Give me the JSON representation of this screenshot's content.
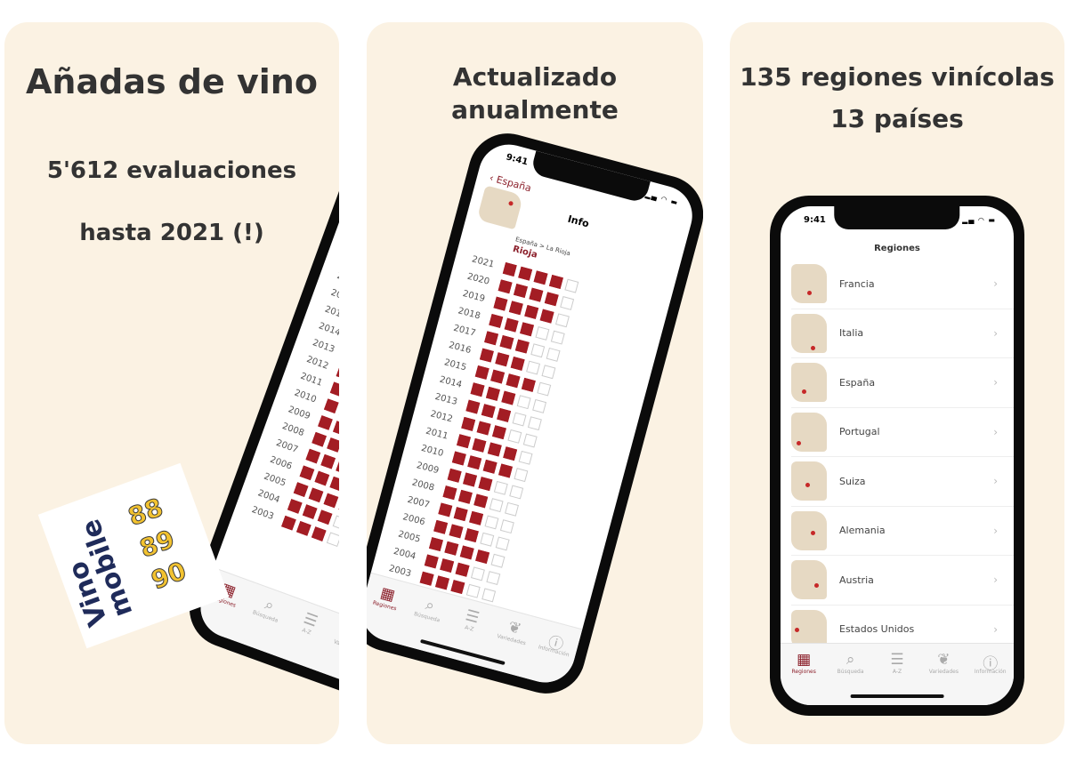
{
  "panels": [
    {
      "headline": "Añadas de vino",
      "line2": "5'612 evaluaciones",
      "line3": "hasta 2021 (!)",
      "logo": {
        "word1": "Vino",
        "word2": "mobile",
        "numbers": [
          "88",
          "89",
          "90"
        ]
      }
    },
    {
      "headline1": "Actualizado",
      "headline2": "anualmente"
    },
    {
      "headline1": "135 regiones vinícolas",
      "headline2": "13 países"
    }
  ],
  "status_time": "9:41",
  "colors": {
    "accent": "#8b1f2a",
    "background": "#fbf2e3",
    "square": "#a31d24"
  },
  "detail_screen": {
    "back_label": "España",
    "title": "Info",
    "breadcrumb": "España > La Rioja",
    "region": "Rioja",
    "vintages": [
      {
        "year": "2021",
        "rating": 4
      },
      {
        "year": "2020",
        "rating": 4
      },
      {
        "year": "2019",
        "rating": 4
      },
      {
        "year": "2018",
        "rating": 3
      },
      {
        "year": "2017",
        "rating": 3
      },
      {
        "year": "2016",
        "rating": 3
      },
      {
        "year": "2015",
        "rating": 4
      },
      {
        "year": "2014",
        "rating": 3
      },
      {
        "year": "2013",
        "rating": 3
      },
      {
        "year": "2012",
        "rating": 3
      },
      {
        "year": "2011",
        "rating": 4
      },
      {
        "year": "2010",
        "rating": 4
      },
      {
        "year": "2009",
        "rating": 3
      },
      {
        "year": "2008",
        "rating": 3
      },
      {
        "year": "2007",
        "rating": 3
      },
      {
        "year": "2006",
        "rating": 3
      },
      {
        "year": "2005",
        "rating": 4
      },
      {
        "year": "2004",
        "rating": 3
      },
      {
        "year": "2003",
        "rating": 3
      }
    ]
  },
  "regions_screen": {
    "title": "Regiones",
    "items": [
      "Francia",
      "Italia",
      "España",
      "Portugal",
      "Suiza",
      "Alemania",
      "Austria",
      "Estados Unidos"
    ]
  },
  "tabs": [
    {
      "label": "Regiones",
      "icon": "grid-icon"
    },
    {
      "label": "Búsqueda",
      "icon": "search-icon"
    },
    {
      "label": "A-Z",
      "icon": "list-icon"
    },
    {
      "label": "Variedades",
      "icon": "grape-icon"
    },
    {
      "label": "Información",
      "icon": "info-icon"
    }
  ]
}
